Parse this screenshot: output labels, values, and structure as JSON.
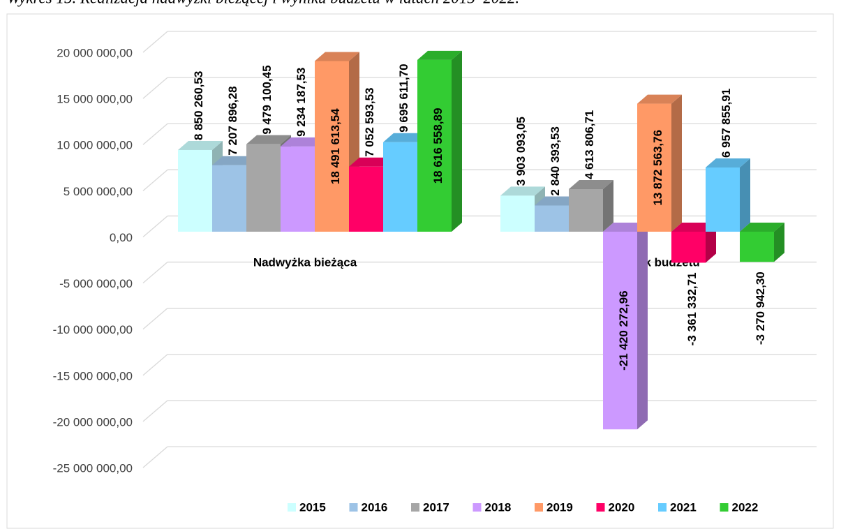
{
  "chart_data": {
    "type": "bar3d",
    "title": "Wykres 15. Realizacja nadwyżki bieżącej i wyniku budżetu w latach 2015–2022.",
    "categories": [
      "Nadwyżka bieżąca",
      "Wynik budżetu"
    ],
    "series": [
      {
        "name": "2015",
        "color": "#ccffff",
        "values": [
          8850260.53,
          3903093.05
        ],
        "value_labels": [
          "8 850 260,53",
          "3 903 093,05"
        ]
      },
      {
        "name": "2016",
        "color": "#9dc3e6",
        "values": [
          7207896.28,
          2840393.53
        ],
        "value_labels": [
          "7 207 896,28",
          "2 840 393,53"
        ]
      },
      {
        "name": "2017",
        "color": "#a6a6a6",
        "values": [
          9479100.45,
          4613806.71
        ],
        "value_labels": [
          "9 479 100,45",
          "4 613 806,71"
        ]
      },
      {
        "name": "2018",
        "color": "#cc99ff",
        "values": [
          9234187.53,
          -21420272.96
        ],
        "value_labels": [
          "9 234 187,53",
          "-21 420 272,96"
        ]
      },
      {
        "name": "2019",
        "color": "#ff9966",
        "values": [
          18491613.54,
          13872563.76
        ],
        "value_labels": [
          "18 491 613,54",
          "13 872 563,76"
        ]
      },
      {
        "name": "2020",
        "color": "#ff0066",
        "values": [
          7052593.53,
          -3361332.71
        ],
        "value_labels": [
          "7 052 593,53",
          "-3 361 332,71"
        ]
      },
      {
        "name": "2021",
        "color": "#66ccff",
        "values": [
          9695611.7,
          6957855.91
        ],
        "value_labels": [
          "9 695 611,70",
          "6 957 855,91"
        ]
      },
      {
        "name": "2022",
        "color": "#33cc33",
        "values": [
          18616558.89,
          -3270942.3
        ],
        "value_labels": [
          "18 616 558,89",
          "-3 270 942,30"
        ]
      }
    ],
    "ylim": [
      -25000000,
      20000000
    ],
    "yticks": [
      {
        "value": -25000000,
        "label": "-25 000 000,00"
      },
      {
        "value": -20000000,
        "label": "-20 000 000,00"
      },
      {
        "value": -15000000,
        "label": "-15 000 000,00"
      },
      {
        "value": -10000000,
        "label": "-10 000 000,00"
      },
      {
        "value": -5000000,
        "label": "-5 000 000,00"
      },
      {
        "value": 0,
        "label": "0,00"
      },
      {
        "value": 5000000,
        "label": "5 000 000,00"
      },
      {
        "value": 10000000,
        "label": "10 000 000,00"
      },
      {
        "value": 15000000,
        "label": "15 000 000,00"
      },
      {
        "value": 20000000,
        "label": "20 000 000,00"
      }
    ],
    "grid": true,
    "legend": "bottom"
  }
}
